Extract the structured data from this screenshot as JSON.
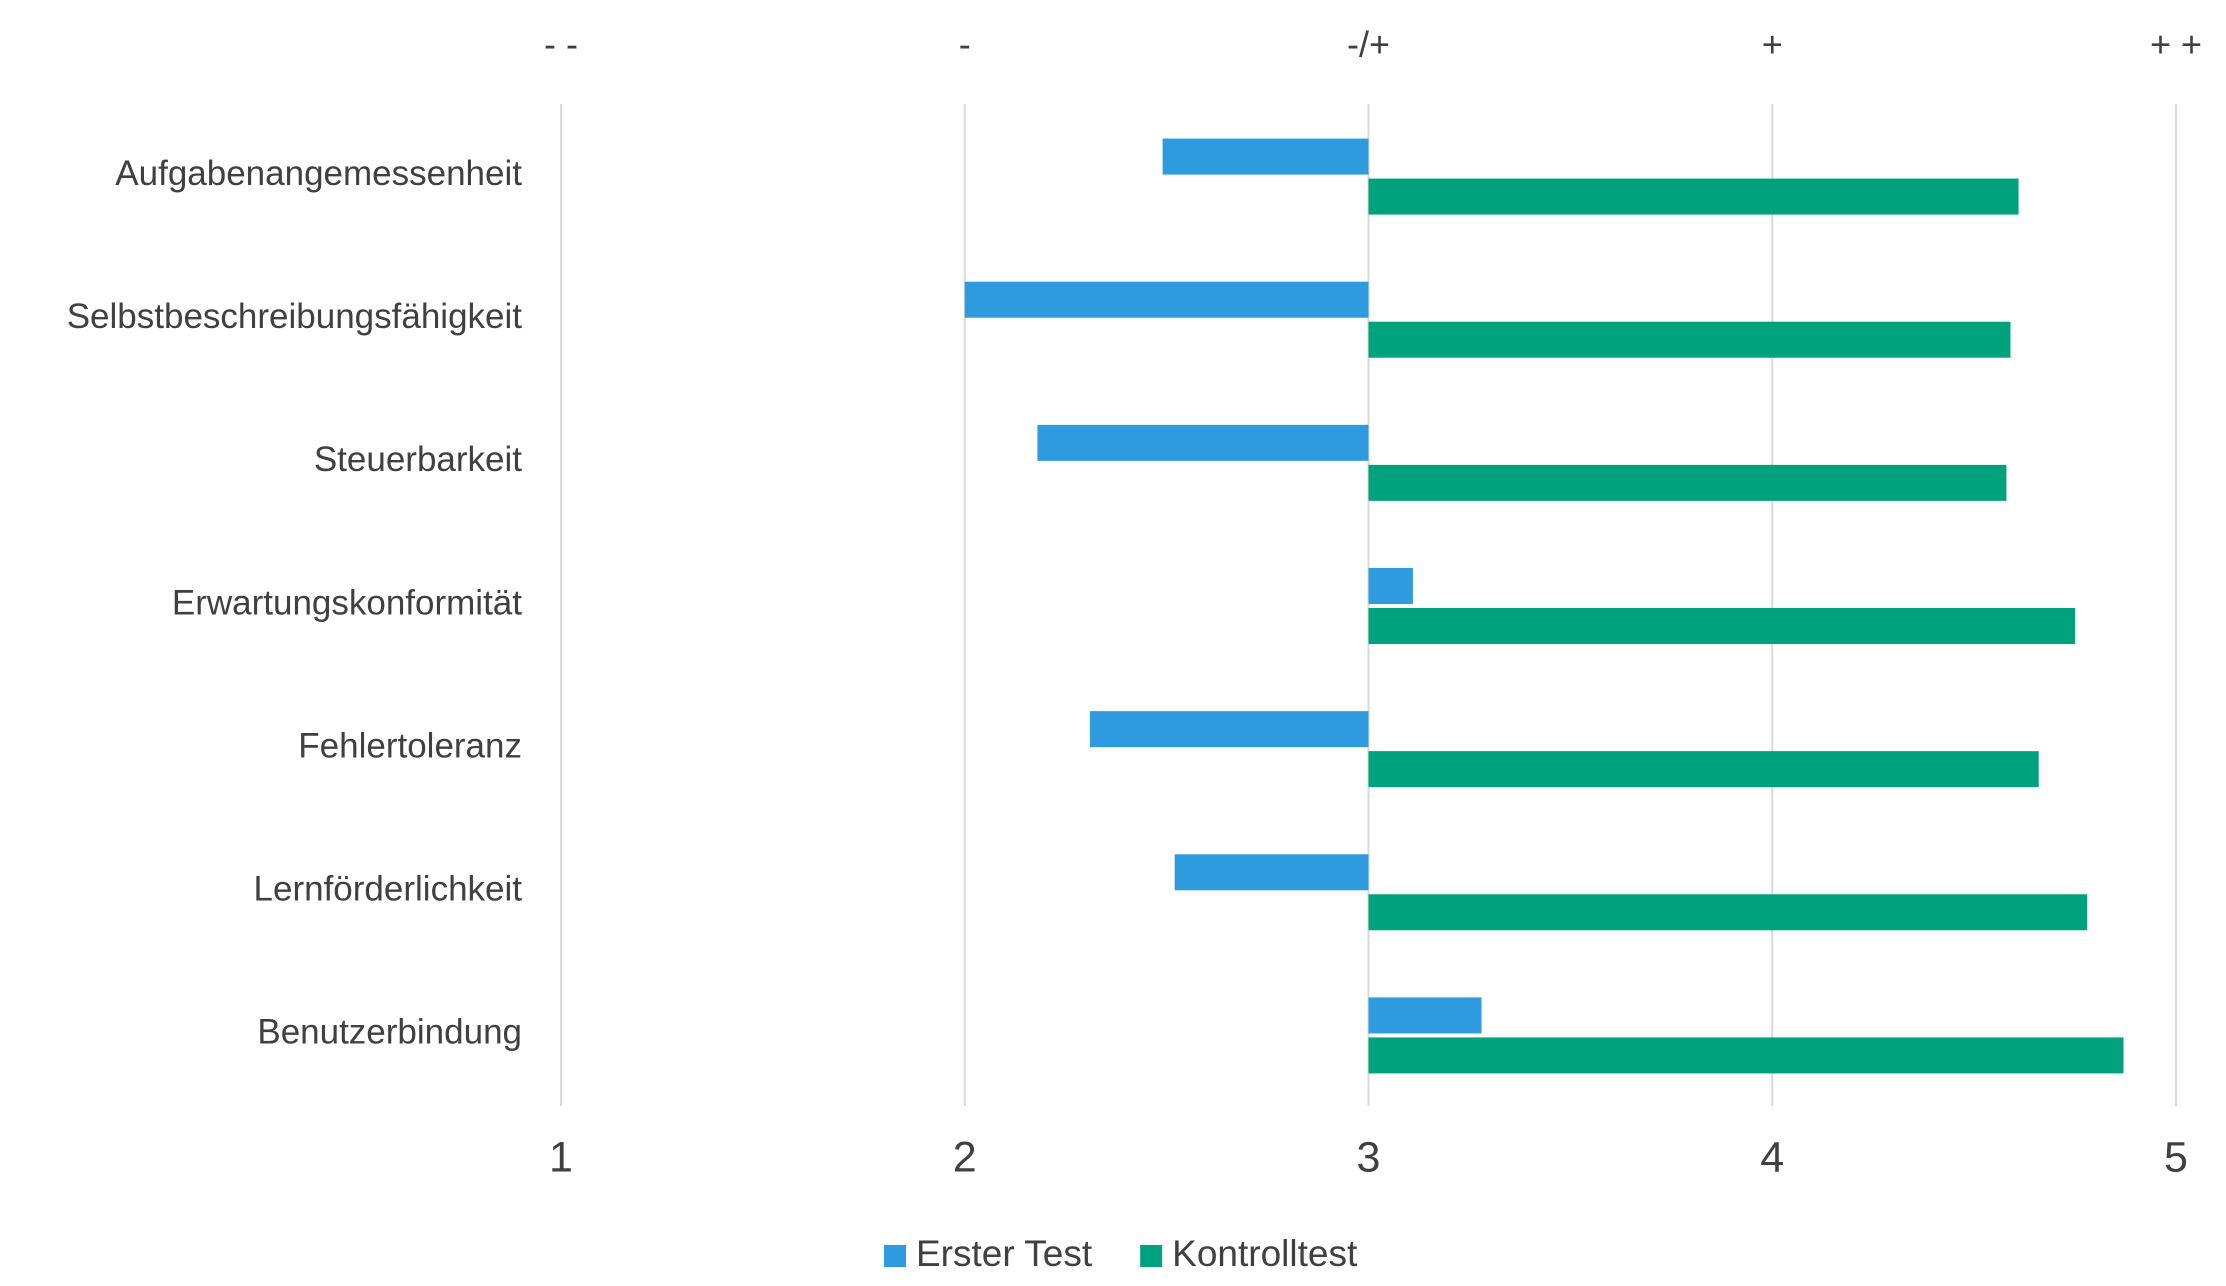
{
  "chart_data": {
    "type": "hbar",
    "categories": [
      "Aufgabenangemessenheit",
      "Selbstbeschreibungsfähigkeit",
      "Steuerbarkeit",
      "Erwartungskonformität",
      "Fehlertoleranz",
      "Lernförderlichkeit",
      "Benutzerbindung"
    ],
    "series": [
      {
        "name": "Erster Test",
        "color": "#2e9bdf",
        "values": [
          2.49,
          2.0,
          2.18,
          3.11,
          2.31,
          2.52,
          3.28
        ]
      },
      {
        "name": "Kontrolltest",
        "color": "#00a27d",
        "values": [
          4.61,
          4.59,
          4.58,
          4.75,
          4.66,
          4.78,
          4.87
        ]
      }
    ],
    "base": 3,
    "xlim": [
      1,
      5
    ],
    "xticks": [
      1,
      2,
      3,
      4,
      5
    ],
    "x2ticks": [
      {
        "value": 1,
        "label": "- -"
      },
      {
        "value": 2,
        "label": "-"
      },
      {
        "value": 3,
        "label": "-/+"
      },
      {
        "value": 4,
        "label": "+"
      },
      {
        "value": 5,
        "label": "+ +"
      }
    ],
    "grid": true,
    "legend": "bottom"
  }
}
